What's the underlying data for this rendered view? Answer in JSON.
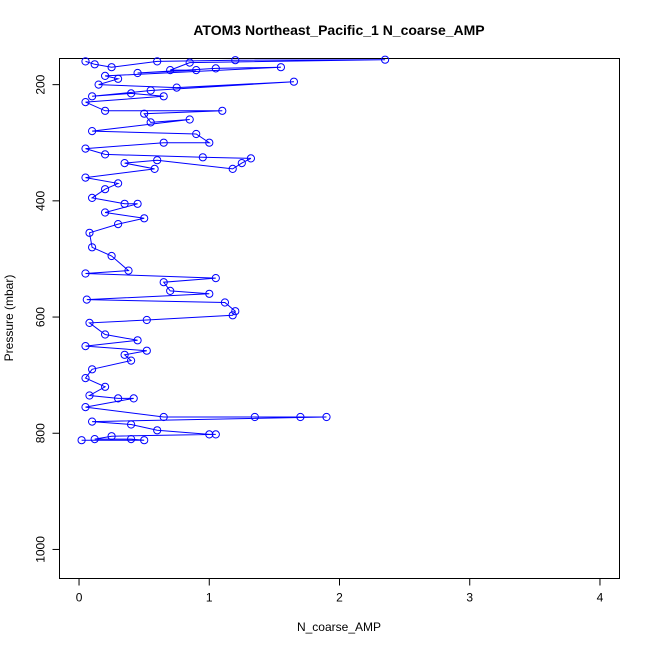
{
  "chart_data": {
    "type": "scatter",
    "title": "ATOM3 Northeast_Pacific_1 N_coarse_AMP",
    "xlabel": "N_coarse_AMP",
    "ylabel": "Pressure (mbar)",
    "xlim": [
      -0.15,
      4.15
    ],
    "ylim": [
      1050,
      155
    ],
    "y_inverted": true,
    "x_ticks": [
      0,
      1,
      2,
      3,
      4
    ],
    "y_ticks": [
      200,
      400,
      600,
      800,
      1000
    ],
    "grid": false,
    "legend": "none",
    "series_color": "#0000ff",
    "marker": "open-circle",
    "connect_points": true,
    "series": [
      {
        "points": [
          [
            0.05,
            160
          ],
          [
            0.12,
            165
          ],
          [
            0.25,
            170
          ],
          [
            0.6,
            160
          ],
          [
            1.2,
            158
          ],
          [
            2.35,
            157
          ],
          [
            0.85,
            162
          ],
          [
            0.7,
            175
          ],
          [
            0.9,
            175
          ],
          [
            0.45,
            180
          ],
          [
            1.05,
            172
          ],
          [
            1.55,
            170
          ],
          [
            0.2,
            185
          ],
          [
            0.3,
            190
          ],
          [
            0.15,
            200
          ],
          [
            0.75,
            205
          ],
          [
            1.65,
            195
          ],
          [
            0.55,
            210
          ],
          [
            0.1,
            220
          ],
          [
            0.4,
            215
          ],
          [
            0.65,
            220
          ],
          [
            0.05,
            230
          ],
          [
            0.2,
            245
          ],
          [
            1.1,
            245
          ],
          [
            0.5,
            250
          ],
          [
            0.55,
            265
          ],
          [
            0.85,
            260
          ],
          [
            0.1,
            280
          ],
          [
            0.9,
            285
          ],
          [
            1.0,
            300
          ],
          [
            0.65,
            300
          ],
          [
            0.05,
            310
          ],
          [
            0.2,
            320
          ],
          [
            0.95,
            325
          ],
          [
            1.32,
            327
          ],
          [
            1.25,
            335
          ],
          [
            1.18,
            345
          ],
          [
            0.6,
            330
          ],
          [
            0.35,
            335
          ],
          [
            0.58,
            345
          ],
          [
            0.05,
            360
          ],
          [
            0.3,
            370
          ],
          [
            0.2,
            380
          ],
          [
            0.1,
            395
          ],
          [
            0.35,
            405
          ],
          [
            0.45,
            405
          ],
          [
            0.2,
            420
          ],
          [
            0.5,
            430
          ],
          [
            0.3,
            440
          ],
          [
            0.08,
            455
          ],
          [
            0.1,
            480
          ],
          [
            0.25,
            495
          ],
          [
            0.38,
            520
          ],
          [
            0.05,
            525
          ],
          [
            1.05,
            533
          ],
          [
            0.65,
            540
          ],
          [
            0.7,
            555
          ],
          [
            1.0,
            560
          ],
          [
            0.06,
            570
          ],
          [
            1.12,
            575
          ],
          [
            1.2,
            590
          ],
          [
            1.18,
            597
          ],
          [
            0.52,
            605
          ],
          [
            0.08,
            610
          ],
          [
            0.2,
            630
          ],
          [
            0.45,
            640
          ],
          [
            0.05,
            650
          ],
          [
            0.52,
            658
          ],
          [
            0.35,
            665
          ],
          [
            0.4,
            675
          ],
          [
            0.1,
            690
          ],
          [
            0.05,
            705
          ],
          [
            0.2,
            720
          ],
          [
            0.08,
            735
          ],
          [
            0.3,
            740
          ],
          [
            0.42,
            740
          ],
          [
            0.05,
            755
          ],
          [
            0.65,
            772
          ],
          [
            1.35,
            772
          ],
          [
            1.7,
            772
          ],
          [
            1.9,
            772
          ],
          [
            0.1,
            780
          ],
          [
            0.4,
            785
          ],
          [
            0.6,
            795
          ],
          [
            1.0,
            802
          ],
          [
            1.05,
            802
          ],
          [
            0.25,
            805
          ],
          [
            0.12,
            810
          ],
          [
            0.4,
            810
          ],
          [
            0.5,
            812
          ],
          [
            0.02,
            812
          ]
        ]
      }
    ]
  }
}
